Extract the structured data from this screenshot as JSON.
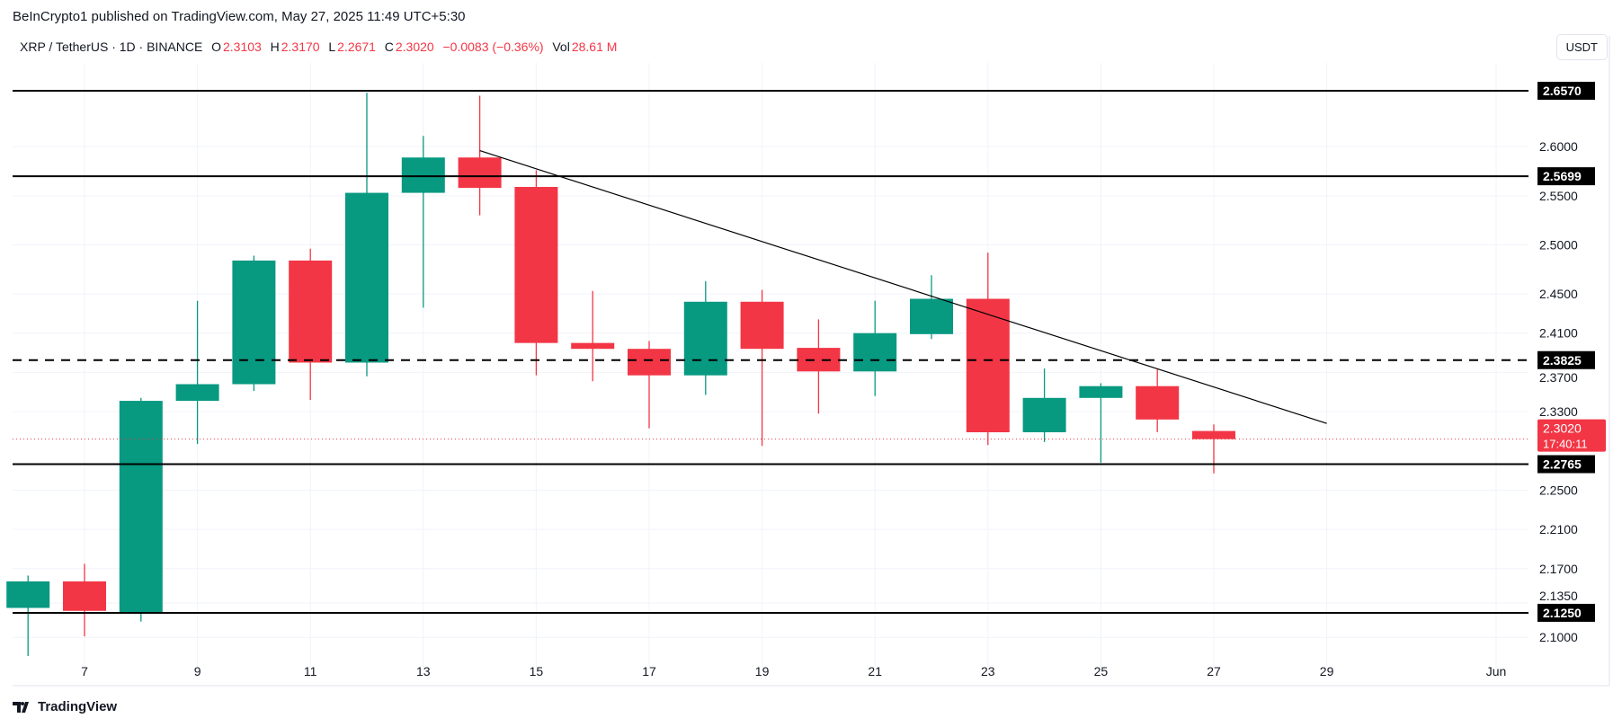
{
  "header": {
    "published": "BeInCrypto1 published on TradingView.com, May 27, 2025 11:49 UTC+5:30"
  },
  "legend": {
    "symbol": "XRP / TetherUS · 1D · BINANCE",
    "o_label": "O",
    "o": "2.3103",
    "h_label": "H",
    "h": "2.3170",
    "l_label": "L",
    "l": "2.2671",
    "c_label": "C",
    "c": "2.3020",
    "change": "−0.0083 (−0.36%)",
    "vol_label": "Vol",
    "vol": "28.61 M"
  },
  "currency": "USDT",
  "brand": "TradingView",
  "countdown": "17:40:11",
  "colors": {
    "up": "#089981",
    "down": "#f23645",
    "line": "#000000",
    "grid": "#f0f3fa"
  },
  "chart_data": {
    "type": "candlestick",
    "ylim": [
      2.08,
      2.69
    ],
    "y_ticks": [
      "2.6000",
      "2.5500",
      "2.5000",
      "2.4500",
      "2.4100",
      "2.3700",
      "2.3300",
      "2.2500",
      "2.2100",
      "2.1700",
      "2.1350",
      "2.1000"
    ],
    "x_ticks": [
      {
        "day": 7,
        "label": "7"
      },
      {
        "day": 9,
        "label": "9"
      },
      {
        "day": 11,
        "label": "11"
      },
      {
        "day": 13,
        "label": "13"
      },
      {
        "day": 15,
        "label": "15"
      },
      {
        "day": 17,
        "label": "17"
      },
      {
        "day": 19,
        "label": "19"
      },
      {
        "day": 21,
        "label": "21"
      },
      {
        "day": 23,
        "label": "23"
      },
      {
        "day": 25,
        "label": "25"
      },
      {
        "day": 27,
        "label": "27"
      },
      {
        "day": 29,
        "label": "29"
      },
      {
        "day": 32,
        "label": "Jun"
      }
    ],
    "candles": [
      {
        "day": 6,
        "o": 2.13,
        "h": 2.163,
        "l": 2.081,
        "c": 2.157
      },
      {
        "day": 7,
        "o": 2.157,
        "h": 2.175,
        "l": 2.101,
        "c": 2.127
      },
      {
        "day": 8,
        "o": 2.125,
        "h": 2.344,
        "l": 2.116,
        "c": 2.341
      },
      {
        "day": 9,
        "o": 2.341,
        "h": 2.443,
        "l": 2.297,
        "c": 2.358
      },
      {
        "day": 10,
        "o": 2.358,
        "h": 2.489,
        "l": 2.351,
        "c": 2.484
      },
      {
        "day": 11,
        "o": 2.484,
        "h": 2.496,
        "l": 2.342,
        "c": 2.38
      },
      {
        "day": 12,
        "o": 2.38,
        "h": 2.655,
        "l": 2.366,
        "c": 2.553
      },
      {
        "day": 13,
        "o": 2.553,
        "h": 2.611,
        "l": 2.436,
        "c": 2.589
      },
      {
        "day": 14,
        "o": 2.589,
        "h": 2.652,
        "l": 2.53,
        "c": 2.558
      },
      {
        "day": 15,
        "o": 2.559,
        "h": 2.576,
        "l": 2.367,
        "c": 2.4
      },
      {
        "day": 16,
        "o": 2.4,
        "h": 2.453,
        "l": 2.361,
        "c": 2.394
      },
      {
        "day": 17,
        "o": 2.394,
        "h": 2.402,
        "l": 2.313,
        "c": 2.367
      },
      {
        "day": 18,
        "o": 2.367,
        "h": 2.463,
        "l": 2.347,
        "c": 2.442
      },
      {
        "day": 19,
        "o": 2.442,
        "h": 2.454,
        "l": 2.295,
        "c": 2.394
      },
      {
        "day": 20,
        "o": 2.395,
        "h": 2.424,
        "l": 2.328,
        "c": 2.371
      },
      {
        "day": 21,
        "o": 2.371,
        "h": 2.443,
        "l": 2.346,
        "c": 2.41
      },
      {
        "day": 22,
        "o": 2.409,
        "h": 2.469,
        "l": 2.404,
        "c": 2.445
      },
      {
        "day": 23,
        "o": 2.445,
        "h": 2.492,
        "l": 2.296,
        "c": 2.309
      },
      {
        "day": 24,
        "o": 2.309,
        "h": 2.374,
        "l": 2.299,
        "c": 2.344
      },
      {
        "day": 25,
        "o": 2.344,
        "h": 2.359,
        "l": 2.278,
        "c": 2.356
      },
      {
        "day": 26,
        "o": 2.356,
        "h": 2.373,
        "l": 2.309,
        "c": 2.322
      },
      {
        "day": 27,
        "o": 2.3103,
        "h": 2.317,
        "l": 2.2671,
        "c": 2.302
      }
    ],
    "levels": [
      {
        "price": 2.657,
        "label": "2.6570",
        "style": "solid"
      },
      {
        "price": 2.5699,
        "label": "2.5699",
        "style": "solid"
      },
      {
        "price": 2.3825,
        "label": "2.3825",
        "style": "dashed"
      },
      {
        "price": 2.2765,
        "label": "2.2765",
        "style": "solid"
      },
      {
        "price": 2.125,
        "label": "2.1250",
        "style": "solid"
      }
    ],
    "last_price": {
      "price": 2.302,
      "label": "2.3020"
    },
    "trendline": {
      "from": {
        "day": 14,
        "price": 2.596
      },
      "to": {
        "day": 29,
        "price": 2.318
      }
    }
  }
}
